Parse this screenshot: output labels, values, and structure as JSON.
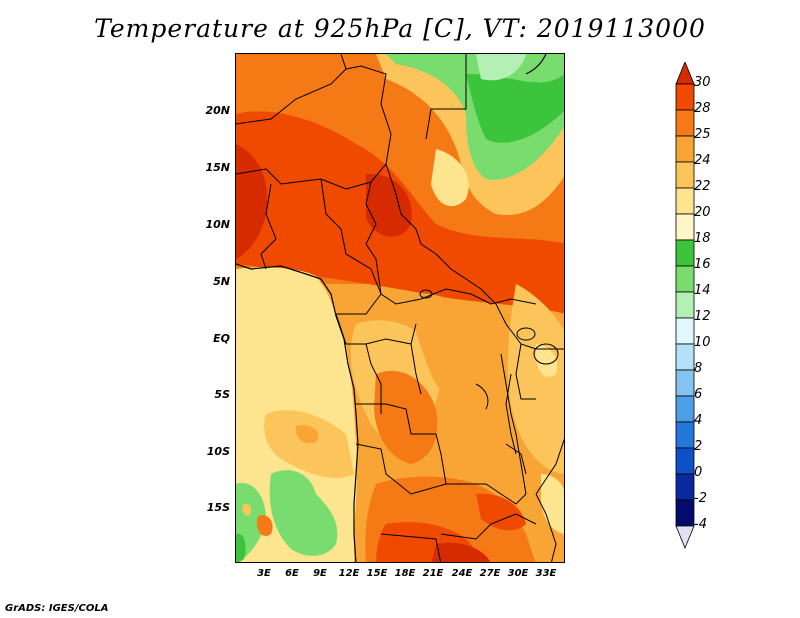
{
  "title": "Temperature at 925hPa [C], VT: 2019113000",
  "credit": "GrADS: IGES/COLA",
  "latitude_labels": [
    "20N",
    "15N",
    "10N",
    "5N",
    "EQ",
    "5S",
    "10S",
    "15S"
  ],
  "longitude_labels": [
    "3E",
    "6E",
    "9E",
    "12E",
    "15E",
    "18E",
    "21E",
    "24E",
    "27E",
    "30E",
    "33E"
  ],
  "colorbar": {
    "labels": [
      "30",
      "28",
      "25",
      "24",
      "22",
      "20",
      "18",
      "16",
      "14",
      "12",
      "10",
      "8",
      "6",
      "4",
      "2",
      "0",
      "-2",
      "-4"
    ],
    "colors": [
      "#d62a00",
      "#f04a00",
      "#f57a16",
      "#f8a535",
      "#fbc55c",
      "#fde48e",
      "#fff7c8",
      "#3cc43c",
      "#78dc6e",
      "#b4f0b4",
      "#e1f8fb",
      "#b4e1f8",
      "#82c3f0",
      "#4b9fe6",
      "#2478dc",
      "#0f50c8",
      "#0a28a0",
      "#050a6e",
      "#e1e1f0"
    ]
  },
  "map": {
    "region": "Central Africa",
    "variable": "Temperature at 925hPa",
    "units": "C"
  }
}
